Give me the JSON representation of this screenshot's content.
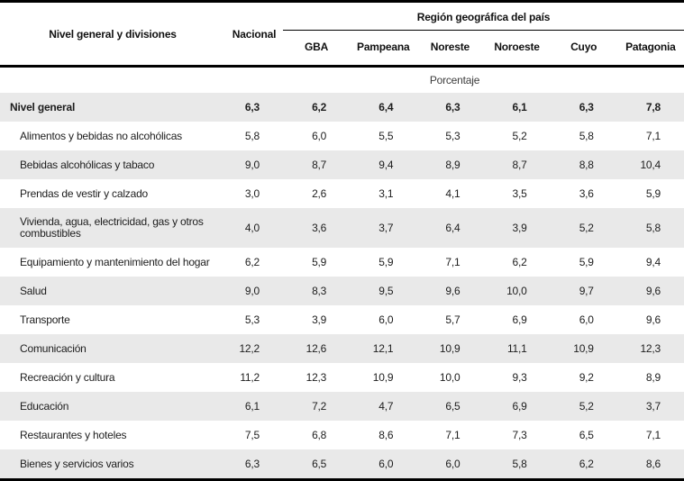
{
  "table": {
    "division_header": "Nivel general y divisiones",
    "national_header": "Nacional",
    "region_group_header": "Región geográfica del país",
    "region_headers": [
      "GBA",
      "Pampeana",
      "Noreste",
      "Noroeste",
      "Cuyo",
      "Patagonia"
    ],
    "unit_row": "Porcentaje",
    "rows": [
      {
        "label": "Nivel general",
        "bold": true,
        "values": [
          "6,3",
          "6,2",
          "6,4",
          "6,3",
          "6,1",
          "6,3",
          "7,8"
        ]
      },
      {
        "label": "Alimentos y bebidas no alcohólicas",
        "bold": false,
        "values": [
          "5,8",
          "6,0",
          "5,5",
          "5,3",
          "5,2",
          "5,8",
          "7,1"
        ]
      },
      {
        "label": "Bebidas alcohólicas y tabaco",
        "bold": false,
        "values": [
          "9,0",
          "8,7",
          "9,4",
          "8,9",
          "8,7",
          "8,8",
          "10,4"
        ]
      },
      {
        "label": "Prendas de vestir y calzado",
        "bold": false,
        "values": [
          "3,0",
          "2,6",
          "3,1",
          "4,1",
          "3,5",
          "3,6",
          "5,9"
        ]
      },
      {
        "label": "Vivienda, agua, electricidad, gas y otros combustibles",
        "bold": false,
        "values": [
          "4,0",
          "3,6",
          "3,7",
          "6,4",
          "3,9",
          "5,2",
          "5,8"
        ]
      },
      {
        "label": "Equipamiento y mantenimiento del hogar",
        "bold": false,
        "values": [
          "6,2",
          "5,9",
          "5,9",
          "7,1",
          "6,2",
          "5,9",
          "9,4"
        ]
      },
      {
        "label": "Salud",
        "bold": false,
        "values": [
          "9,0",
          "8,3",
          "9,5",
          "9,6",
          "10,0",
          "9,7",
          "9,6"
        ]
      },
      {
        "label": "Transporte",
        "bold": false,
        "values": [
          "5,3",
          "3,9",
          "6,0",
          "5,7",
          "6,9",
          "6,0",
          "9,6"
        ]
      },
      {
        "label": "Comunicación",
        "bold": false,
        "values": [
          "12,2",
          "12,6",
          "12,1",
          "10,9",
          "11,1",
          "10,9",
          "12,3"
        ]
      },
      {
        "label": "Recreación y cultura",
        "bold": false,
        "values": [
          "11,2",
          "12,3",
          "10,9",
          "10,0",
          "9,3",
          "9,2",
          "8,9"
        ]
      },
      {
        "label": "Educación",
        "bold": false,
        "values": [
          "6,1",
          "7,2",
          "4,7",
          "6,5",
          "6,9",
          "5,2",
          "3,7"
        ]
      },
      {
        "label": "Restaurantes y hoteles",
        "bold": false,
        "values": [
          "7,5",
          "6,8",
          "8,6",
          "7,1",
          "7,3",
          "6,5",
          "7,1"
        ]
      },
      {
        "label": "Bienes y servicios varios",
        "bold": false,
        "values": [
          "6,3",
          "6,5",
          "6,0",
          "6,0",
          "5,8",
          "6,2",
          "8,6"
        ]
      }
    ],
    "colors": {
      "stripe": "#e9e9e9",
      "rule": "#000000",
      "text": "#1d1d1d"
    }
  },
  "chart_data": {
    "type": "table",
    "title": "Región geográfica del país",
    "unit": "Porcentaje",
    "columns": [
      "Nivel general y divisiones",
      "Nacional",
      "GBA",
      "Pampeana",
      "Noreste",
      "Noroeste",
      "Cuyo",
      "Patagonia"
    ],
    "rows": [
      [
        "Nivel general",
        6.3,
        6.2,
        6.4,
        6.3,
        6.1,
        6.3,
        7.8
      ],
      [
        "Alimentos y bebidas no alcohólicas",
        5.8,
        6.0,
        5.5,
        5.3,
        5.2,
        5.8,
        7.1
      ],
      [
        "Bebidas alcohólicas y tabaco",
        9.0,
        8.7,
        9.4,
        8.9,
        8.7,
        8.8,
        10.4
      ],
      [
        "Prendas de vestir y calzado",
        3.0,
        2.6,
        3.1,
        4.1,
        3.5,
        3.6,
        5.9
      ],
      [
        "Vivienda, agua, electricidad, gas y otros combustibles",
        4.0,
        3.6,
        3.7,
        6.4,
        3.9,
        5.2,
        5.8
      ],
      [
        "Equipamiento y mantenimiento del hogar",
        6.2,
        5.9,
        5.9,
        7.1,
        6.2,
        5.9,
        9.4
      ],
      [
        "Salud",
        9.0,
        8.3,
        9.5,
        9.6,
        10.0,
        9.7,
        9.6
      ],
      [
        "Transporte",
        5.3,
        3.9,
        6.0,
        5.7,
        6.9,
        6.0,
        9.6
      ],
      [
        "Comunicación",
        12.2,
        12.6,
        12.1,
        10.9,
        11.1,
        10.9,
        12.3
      ],
      [
        "Recreación y cultura",
        11.2,
        12.3,
        10.9,
        10.0,
        9.3,
        9.2,
        8.9
      ],
      [
        "Educación",
        6.1,
        7.2,
        4.7,
        6.5,
        6.9,
        5.2,
        3.7
      ],
      [
        "Restaurantes y hoteles",
        7.5,
        6.8,
        8.6,
        7.1,
        7.3,
        6.5,
        7.1
      ],
      [
        "Bienes y servicios varios",
        6.3,
        6.5,
        6.0,
        6.0,
        5.8,
        6.2,
        8.6
      ]
    ]
  }
}
